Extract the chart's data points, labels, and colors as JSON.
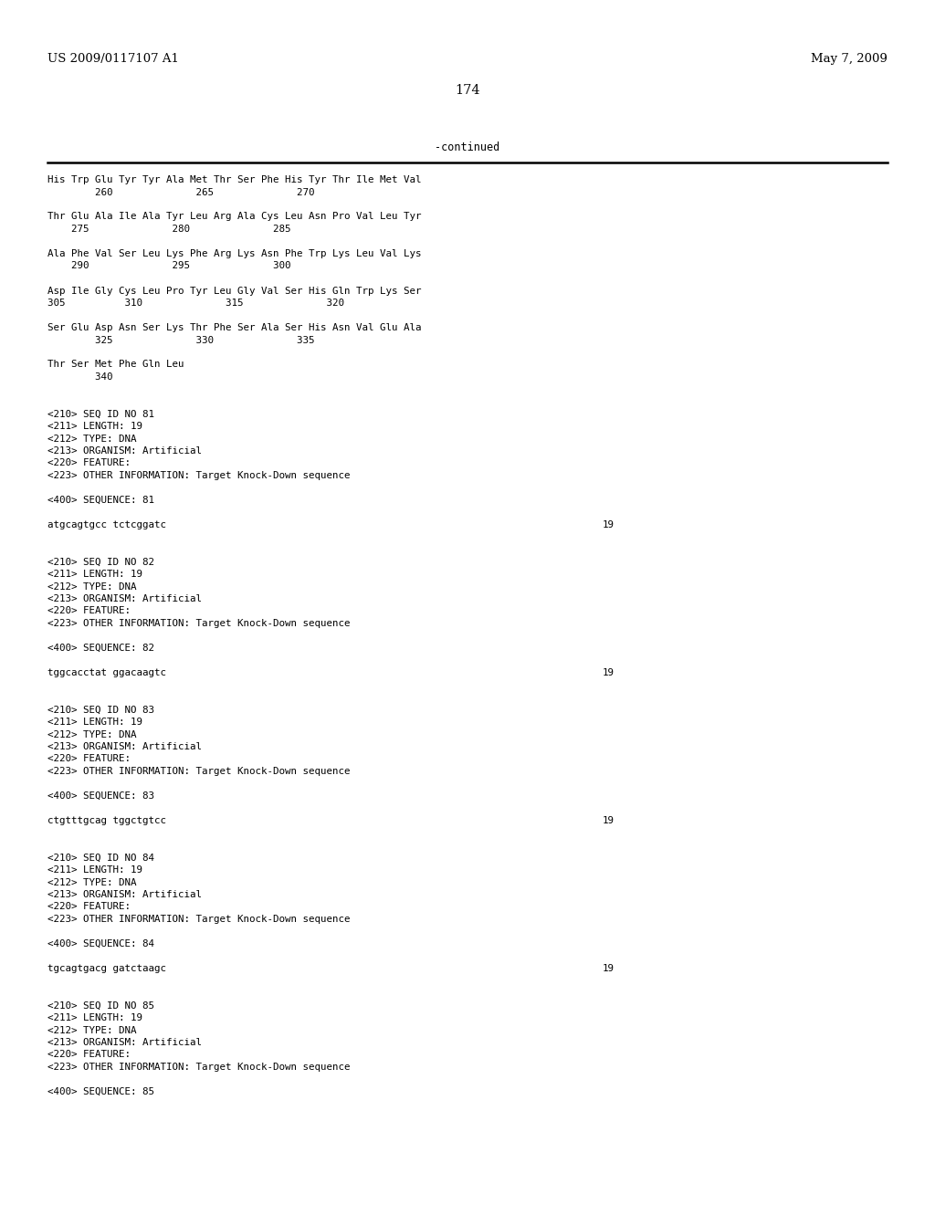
{
  "header_left": "US 2009/0117107 A1",
  "header_right": "May 7, 2009",
  "page_number": "174",
  "continued_label": "-continued",
  "background_color": "#ffffff",
  "text_color": "#000000",
  "font_size_header": 9.5,
  "font_size_page": 10.5,
  "font_size_mono": 7.8,
  "content_lines": [
    {
      "text": "His Trp Glu Tyr Tyr Ala Met Thr Ser Phe His Tyr Thr Ile Met Val",
      "seq_num": null
    },
    {
      "text": "        260              265              270",
      "seq_num": null
    },
    {
      "text": "",
      "seq_num": null
    },
    {
      "text": "Thr Glu Ala Ile Ala Tyr Leu Arg Ala Cys Leu Asn Pro Val Leu Tyr",
      "seq_num": null
    },
    {
      "text": "    275              280              285",
      "seq_num": null
    },
    {
      "text": "",
      "seq_num": null
    },
    {
      "text": "Ala Phe Val Ser Leu Lys Phe Arg Lys Asn Phe Trp Lys Leu Val Lys",
      "seq_num": null
    },
    {
      "text": "    290              295              300",
      "seq_num": null
    },
    {
      "text": "",
      "seq_num": null
    },
    {
      "text": "Asp Ile Gly Cys Leu Pro Tyr Leu Gly Val Ser His Gln Trp Lys Ser",
      "seq_num": null
    },
    {
      "text": "305          310              315              320",
      "seq_num": null
    },
    {
      "text": "",
      "seq_num": null
    },
    {
      "text": "Ser Glu Asp Asn Ser Lys Thr Phe Ser Ala Ser His Asn Val Glu Ala",
      "seq_num": null
    },
    {
      "text": "        325              330              335",
      "seq_num": null
    },
    {
      "text": "",
      "seq_num": null
    },
    {
      "text": "Thr Ser Met Phe Gln Leu",
      "seq_num": null
    },
    {
      "text": "        340",
      "seq_num": null
    },
    {
      "text": "",
      "seq_num": null
    },
    {
      "text": "",
      "seq_num": null
    },
    {
      "text": "<210> SEQ ID NO 81",
      "seq_num": null
    },
    {
      "text": "<211> LENGTH: 19",
      "seq_num": null
    },
    {
      "text": "<212> TYPE: DNA",
      "seq_num": null
    },
    {
      "text": "<213> ORGANISM: Artificial",
      "seq_num": null
    },
    {
      "text": "<220> FEATURE:",
      "seq_num": null
    },
    {
      "text": "<223> OTHER INFORMATION: Target Knock-Down sequence",
      "seq_num": null
    },
    {
      "text": "",
      "seq_num": null
    },
    {
      "text": "<400> SEQUENCE: 81",
      "seq_num": null
    },
    {
      "text": "",
      "seq_num": null
    },
    {
      "text": "atgcagtgcc tctcggatc",
      "seq_num": "19"
    },
    {
      "text": "",
      "seq_num": null
    },
    {
      "text": "",
      "seq_num": null
    },
    {
      "text": "<210> SEQ ID NO 82",
      "seq_num": null
    },
    {
      "text": "<211> LENGTH: 19",
      "seq_num": null
    },
    {
      "text": "<212> TYPE: DNA",
      "seq_num": null
    },
    {
      "text": "<213> ORGANISM: Artificial",
      "seq_num": null
    },
    {
      "text": "<220> FEATURE:",
      "seq_num": null
    },
    {
      "text": "<223> OTHER INFORMATION: Target Knock-Down sequence",
      "seq_num": null
    },
    {
      "text": "",
      "seq_num": null
    },
    {
      "text": "<400> SEQUENCE: 82",
      "seq_num": null
    },
    {
      "text": "",
      "seq_num": null
    },
    {
      "text": "tggcacctat ggacaagtc",
      "seq_num": "19"
    },
    {
      "text": "",
      "seq_num": null
    },
    {
      "text": "",
      "seq_num": null
    },
    {
      "text": "<210> SEQ ID NO 83",
      "seq_num": null
    },
    {
      "text": "<211> LENGTH: 19",
      "seq_num": null
    },
    {
      "text": "<212> TYPE: DNA",
      "seq_num": null
    },
    {
      "text": "<213> ORGANISM: Artificial",
      "seq_num": null
    },
    {
      "text": "<220> FEATURE:",
      "seq_num": null
    },
    {
      "text": "<223> OTHER INFORMATION: Target Knock-Down sequence",
      "seq_num": null
    },
    {
      "text": "",
      "seq_num": null
    },
    {
      "text": "<400> SEQUENCE: 83",
      "seq_num": null
    },
    {
      "text": "",
      "seq_num": null
    },
    {
      "text": "ctgtttgcag tggctgtcc",
      "seq_num": "19"
    },
    {
      "text": "",
      "seq_num": null
    },
    {
      "text": "",
      "seq_num": null
    },
    {
      "text": "<210> SEQ ID NO 84",
      "seq_num": null
    },
    {
      "text": "<211> LENGTH: 19",
      "seq_num": null
    },
    {
      "text": "<212> TYPE: DNA",
      "seq_num": null
    },
    {
      "text": "<213> ORGANISM: Artificial",
      "seq_num": null
    },
    {
      "text": "<220> FEATURE:",
      "seq_num": null
    },
    {
      "text": "<223> OTHER INFORMATION: Target Knock-Down sequence",
      "seq_num": null
    },
    {
      "text": "",
      "seq_num": null
    },
    {
      "text": "<400> SEQUENCE: 84",
      "seq_num": null
    },
    {
      "text": "",
      "seq_num": null
    },
    {
      "text": "tgcagtgacg gatctaagc",
      "seq_num": "19"
    },
    {
      "text": "",
      "seq_num": null
    },
    {
      "text": "",
      "seq_num": null
    },
    {
      "text": "<210> SEQ ID NO 85",
      "seq_num": null
    },
    {
      "text": "<211> LENGTH: 19",
      "seq_num": null
    },
    {
      "text": "<212> TYPE: DNA",
      "seq_num": null
    },
    {
      "text": "<213> ORGANISM: Artificial",
      "seq_num": null
    },
    {
      "text": "<220> FEATURE:",
      "seq_num": null
    },
    {
      "text": "<223> OTHER INFORMATION: Target Knock-Down sequence",
      "seq_num": null
    },
    {
      "text": "",
      "seq_num": null
    },
    {
      "text": "<400> SEQUENCE: 85",
      "seq_num": null
    }
  ]
}
